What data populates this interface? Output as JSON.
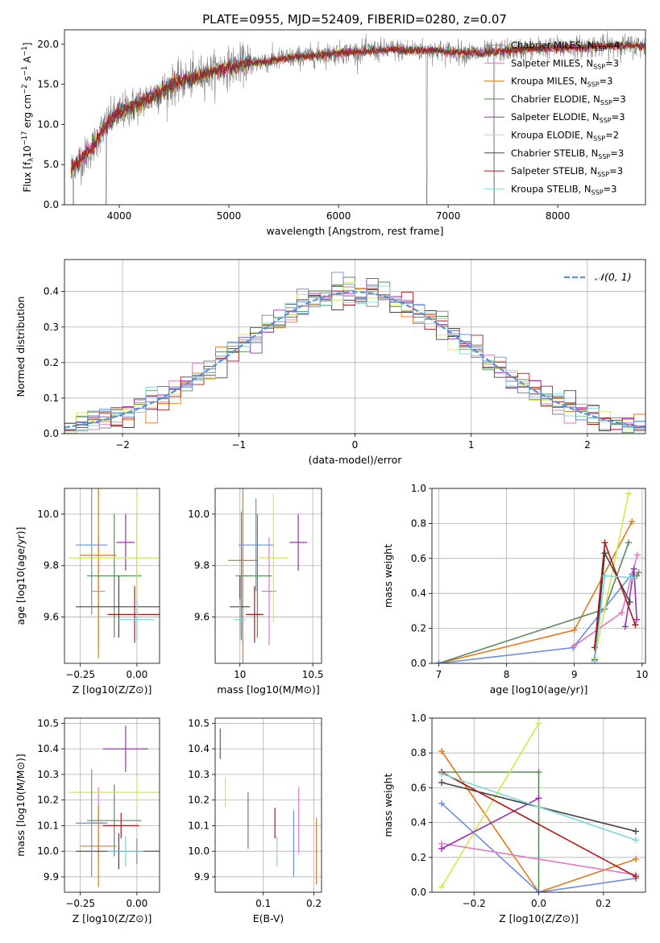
{
  "figure_title": "PLATE=0955, MJD=52409, FIBERID=0280, z=0.07",
  "colors": {
    "chabrier_miles": "#808080",
    "salpeter_miles": "#e377c2",
    "kroupa_miles": "#e07b1a",
    "chabrier_elodie": "#5a8a5a",
    "salpeter_elodie": "#9b30b0",
    "kroupa_elodie": "#d4e84a",
    "chabrier_stelib": "#444444",
    "salpeter_stelib": "#b01818",
    "kroupa_stelib": "#7fd6dc",
    "normal": "#5b8fd6",
    "extra": "#6b8ee0"
  },
  "chart_data": [
    {
      "id": "spectrum",
      "type": "line",
      "title": "PLATE=0955, MJD=52409, FIBERID=0280, z=0.07",
      "xlabel": "wavelength [Angstrom, rest frame]",
      "ylabel_parts": [
        "Flux [f",
        "λ",
        "10",
        "−17",
        " erg cm",
        "−2",
        " s",
        "−1",
        " A",
        "−1",
        "]"
      ],
      "xlim": [
        3500,
        8800
      ],
      "ylim": [
        0,
        21.8
      ],
      "xticks": [
        4000,
        5000,
        6000,
        7000,
        8000
      ],
      "yticks": [
        0,
        5,
        10,
        15,
        20
      ],
      "grid": false,
      "legend_position": "right",
      "legend": [
        {
          "label": "Chabrier MILES, N",
          "sub": "SSP",
          "suffix": "=4",
          "color": "#808080"
        },
        {
          "label": "Salpeter MILES, N",
          "sub": "SSP",
          "suffix": "=3",
          "color": "#e377c2"
        },
        {
          "label": "Kroupa MILES, N",
          "sub": "SSP",
          "suffix": "=3",
          "color": "#e07b1a"
        },
        {
          "label": "Chabrier ELODIE, N",
          "sub": "SSP",
          "suffix": "=3",
          "color": "#5a8a5a"
        },
        {
          "label": "Salpeter ELODIE, N",
          "sub": "SSP",
          "suffix": "=3",
          "color": "#9b30b0"
        },
        {
          "label": "Kroupa ELODIE, N",
          "sub": "SSP",
          "suffix": "=2",
          "color": "#d4e84a"
        },
        {
          "label": "Chabrier STELIB, N",
          "sub": "SSP",
          "suffix": "=3",
          "color": "#444444"
        },
        {
          "label": "Salpeter STELIB, N",
          "sub": "SSP",
          "suffix": "=3",
          "color": "#b01818"
        },
        {
          "label": "Kroupa STELIB, N",
          "sub": "SSP",
          "suffix": "=3",
          "color": "#7fd6dc"
        }
      ],
      "continuum": {
        "x": [
          3560,
          3650,
          3750,
          3850,
          3950,
          4050,
          4150,
          4300,
          4500,
          4700,
          4900,
          5100,
          5300,
          5500,
          5700,
          5900,
          6100,
          6300,
          6500,
          6700,
          6900,
          7100,
          7300,
          7500,
          7700,
          7900,
          8100,
          8300,
          8500,
          8800
        ],
        "y": [
          4.5,
          5.5,
          7.0,
          9.5,
          11.0,
          11.8,
          12.5,
          13.5,
          15.0,
          16.0,
          16.8,
          17.5,
          17.8,
          18.2,
          18.5,
          18.8,
          19.0,
          19.2,
          19.3,
          19.3,
          19.2,
          19.0,
          18.9,
          19.2,
          19.4,
          19.5,
          19.6,
          19.7,
          19.8,
          19.8
        ]
      },
      "dips": [
        {
          "x": 3580,
          "y": 0
        },
        {
          "x": 3880,
          "y": 0
        },
        {
          "x": 6805,
          "y": 0
        },
        {
          "x": 7420,
          "y": 0
        }
      ]
    },
    {
      "id": "residuals",
      "type": "histogram",
      "xlabel": "(data-model)/error",
      "ylabel": "Normed distribution",
      "xlim": [
        -2.5,
        2.5
      ],
      "ylim": [
        0,
        0.49
      ],
      "xticks": [
        -2,
        -1,
        0,
        1,
        2
      ],
      "yticks": [
        0.0,
        0.1,
        0.2,
        0.3,
        0.4
      ],
      "grid": true,
      "legend_position": "top-right",
      "legend_label": "𝒩(0, 1)",
      "bin_width": 0.1,
      "bin_start": -2.5,
      "n_series": 9
    },
    {
      "id": "age_vs_Z",
      "type": "errorbar",
      "xlabel": "Z [log10(Z/Z⊙)]",
      "ylabel": "age  [log10(age/yr)]",
      "xlim": [
        -0.32,
        0.1
      ],
      "ylim": [
        9.42,
        10.1
      ],
      "xticks": [
        -0.25,
        0.0
      ],
      "xtick_labels": [
        "−0.25",
        "0.00"
      ],
      "yticks": [
        9.6,
        9.8,
        10.0
      ],
      "grid": true,
      "points": [
        {
          "color": "#808080",
          "x": 0.0,
          "xerr": 0.0,
          "y": 9.76,
          "yerr": 0.25
        },
        {
          "color": "#e377c2",
          "x": -0.17,
          "xerr": 0.03,
          "y": 9.7,
          "yerr": 0.21
        },
        {
          "color": "#e07b1a",
          "x": -0.17,
          "xerr": 0.08,
          "y": 9.84,
          "yerr": 0.4
        },
        {
          "color": "#5a8a5a",
          "x": -0.1,
          "xerr": 0.12,
          "y": 9.76,
          "yerr": 0.24
        },
        {
          "color": "#9b30b0",
          "x": -0.05,
          "xerr": 0.04,
          "y": 9.89,
          "yerr": 0.11
        },
        {
          "color": "#d4e84a",
          "x": 0.0,
          "xerr": 0.3,
          "y": 9.83,
          "yerr": 0.25
        },
        {
          "color": "#444444",
          "x": -0.08,
          "xerr": 0.19,
          "y": 9.64,
          "yerr": 0.12
        },
        {
          "color": "#b01818",
          "x": -0.01,
          "xerr": 0.12,
          "y": 9.61,
          "yerr": 0.11
        },
        {
          "color": "#7fd6dc",
          "x": 0.0,
          "xerr": 0.08,
          "y": 9.59,
          "yerr": 0.08
        },
        {
          "color": "#6b8ee0",
          "x": -0.2,
          "xerr": 0.07,
          "y": 9.88,
          "yerr": 0.27
        }
      ]
    },
    {
      "id": "age_vs_mass",
      "type": "errorbar",
      "xlabel": "mass [log10(M/M⊙)]",
      "ylabel": "",
      "xlim": [
        9.83,
        10.56
      ],
      "ylim": [
        9.42,
        10.1
      ],
      "xticks": [
        10.0,
        10.5
      ],
      "yticks": [
        9.6,
        9.8,
        10.0
      ],
      "grid": true,
      "points": [
        {
          "color": "#808080",
          "x": 10.01,
          "xerr": 0.04,
          "y": 9.76,
          "yerr": 0.25
        },
        {
          "color": "#e377c2",
          "x": 10.2,
          "xerr": 0.05,
          "y": 9.7,
          "yerr": 0.21
        },
        {
          "color": "#e07b1a",
          "x": 10.02,
          "xerr": 0.1,
          "y": 9.82,
          "yerr": 0.4
        },
        {
          "color": "#5a8a5a",
          "x": 10.12,
          "xerr": 0.1,
          "y": 9.76,
          "yerr": 0.24
        },
        {
          "color": "#9b30b0",
          "x": 10.4,
          "xerr": 0.06,
          "y": 9.89,
          "yerr": 0.11
        },
        {
          "color": "#d4e84a",
          "x": 10.23,
          "xerr": 0.1,
          "y": 9.83,
          "yerr": 0.25
        },
        {
          "color": "#444444",
          "x": 10.0,
          "xerr": 0.07,
          "y": 9.64,
          "yerr": 0.12
        },
        {
          "color": "#b01818",
          "x": 10.1,
          "xerr": 0.06,
          "y": 9.61,
          "yerr": 0.11
        },
        {
          "color": "#7fd6dc",
          "x": 10.0,
          "xerr": 0.04,
          "y": 9.59,
          "yerr": 0.08
        },
        {
          "color": "#6b8ee0",
          "x": 10.11,
          "xerr": 0.12,
          "y": 9.88,
          "yerr": 0.18
        }
      ]
    },
    {
      "id": "weight_vs_age",
      "type": "line",
      "xlabel": "age  [log10(age/yr)]",
      "ylabel": "mass weight",
      "xlim": [
        6.9,
        10.05
      ],
      "ylim": [
        0,
        1.0
      ],
      "xticks": [
        7,
        8,
        9,
        10
      ],
      "yticks": [
        0.0,
        0.2,
        0.4,
        0.6,
        0.8,
        1.0
      ],
      "grid": true,
      "series": [
        {
          "color": "#e07b1a",
          "x": [
            7.0,
            9.0,
            9.85
          ],
          "y": [
            0.0,
            0.19,
            0.81
          ]
        },
        {
          "color": "#5a8a5a",
          "x": [
            7.0,
            9.45,
            9.8
          ],
          "y": [
            0.0,
            0.31,
            0.69
          ]
        },
        {
          "color": "#6b8ee0",
          "x": [
            7.0,
            8.98,
            9.85
          ],
          "y": [
            0.0,
            0.09,
            0.51
          ]
        },
        {
          "color": "#d4e84a",
          "x": [
            9.3,
            9.8
          ],
          "y": [
            0.03,
            0.97
          ]
        },
        {
          "color": "#e377c2",
          "x": [
            9.0,
            9.7,
            9.93
          ],
          "y": [
            0.1,
            0.29,
            0.62
          ]
        },
        {
          "color": "#9b30b0",
          "x": [
            9.75,
            9.88,
            9.92
          ],
          "y": [
            0.21,
            0.54,
            0.25
          ]
        },
        {
          "color": "#444444",
          "x": [
            9.3,
            9.45,
            9.82
          ],
          "y": [
            0.02,
            0.63,
            0.35
          ]
        },
        {
          "color": "#b01818",
          "x": [
            9.3,
            9.45,
            9.9
          ],
          "y": [
            0.09,
            0.69,
            0.22
          ]
        },
        {
          "color": "#7fd6dc",
          "x": [
            9.3,
            9.45,
            9.85
          ],
          "y": [
            0.01,
            0.5,
            0.49
          ]
        },
        {
          "color": "#808080",
          "x": [
            9.92,
            9.95
          ],
          "y": [
            0.5,
            0.52
          ]
        }
      ]
    },
    {
      "id": "mass_vs_Z",
      "type": "errorbar",
      "xlabel": "Z [log10(Z/Z⊙)]",
      "ylabel": "mass [log10(M/M⊙)]",
      "xlim": [
        -0.32,
        0.1
      ],
      "ylim": [
        9.84,
        10.52
      ],
      "xticks": [
        -0.25,
        0.0
      ],
      "xtick_labels": [
        "−0.25",
        "0.00"
      ],
      "yticks": [
        9.9,
        10.0,
        10.1,
        10.2,
        10.3,
        10.4,
        10.5
      ],
      "grid": true,
      "points": [
        {
          "color": "#808080",
          "x": 0.0,
          "xerr": 0.0,
          "y": 10.0,
          "yerr": 0.05
        },
        {
          "color": "#e377c2",
          "x": -0.17,
          "xerr": 0.03,
          "y": 10.11,
          "yerr": 0.14
        },
        {
          "color": "#e07b1a",
          "x": -0.17,
          "xerr": 0.08,
          "y": 10.02,
          "yerr": 0.16
        },
        {
          "color": "#5a8a5a",
          "x": -0.1,
          "xerr": 0.12,
          "y": 10.12,
          "yerr": 0.14
        },
        {
          "color": "#9b30b0",
          "x": -0.05,
          "xerr": 0.1,
          "y": 10.4,
          "yerr": 0.09
        },
        {
          "color": "#d4e84a",
          "x": 0.0,
          "xerr": 0.3,
          "y": 10.23,
          "yerr": 0.06
        },
        {
          "color": "#444444",
          "x": -0.08,
          "xerr": 0.19,
          "y": 10.0,
          "yerr": 0.07
        },
        {
          "color": "#b01818",
          "x": -0.07,
          "xerr": 0.08,
          "y": 10.1,
          "yerr": 0.05
        },
        {
          "color": "#7fd6dc",
          "x": -0.05,
          "xerr": 0.08,
          "y": 10.0,
          "yerr": 0.06
        },
        {
          "color": "#6b8ee0",
          "x": -0.2,
          "xerr": 0.07,
          "y": 10.11,
          "yerr": 0.21
        }
      ]
    },
    {
      "id": "mass_vs_ebv",
      "type": "errorbar",
      "xlabel": "E(B-V)",
      "ylabel": "",
      "xlim": [
        0.005,
        0.215
      ],
      "ylim": [
        9.84,
        10.52
      ],
      "xticks": [
        0.1,
        0.2
      ],
      "yticks": [
        9.9,
        10.0,
        10.1,
        10.2,
        10.3,
        10.4,
        10.5
      ],
      "grid": true,
      "points": [
        {
          "color": "#9b30b0",
          "x": 0.015,
          "xerr": 0.0,
          "y": 10.42,
          "yerr": 0.06
        },
        {
          "color": "#d4e84a",
          "x": 0.025,
          "xerr": 0.0,
          "y": 10.23,
          "yerr": 0.06
        },
        {
          "color": "#5a8a5a",
          "x": 0.07,
          "xerr": 0.0,
          "y": 10.12,
          "yerr": 0.11
        },
        {
          "color": "#b01818",
          "x": 0.123,
          "xerr": 0.0,
          "y": 10.11,
          "yerr": 0.06
        },
        {
          "color": "#7fd6dc",
          "x": 0.127,
          "xerr": 0.0,
          "y": 10.0,
          "yerr": 0.06
        },
        {
          "color": "#6b8ee0",
          "x": 0.16,
          "xerr": 0.0,
          "y": 10.03,
          "yerr": 0.13
        },
        {
          "color": "#e377c2",
          "x": 0.17,
          "xerr": 0.0,
          "y": 10.12,
          "yerr": 0.13
        },
        {
          "color": "#e07b1a",
          "x": 0.205,
          "xerr": 0.0,
          "y": 10.0,
          "yerr": 0.13
        }
      ]
    },
    {
      "id": "weight_vs_Z",
      "type": "line",
      "xlabel": "Z [log10(Z/Z⊙)]",
      "ylabel": "mass weight",
      "xlim": [
        -0.33,
        0.33
      ],
      "ylim": [
        0,
        1.0
      ],
      "xticks": [
        -0.2,
        0.0,
        0.2
      ],
      "xtick_labels": [
        "−0.2",
        "0.0",
        "0.2"
      ],
      "yticks": [
        0.0,
        0.2,
        0.4,
        0.6,
        0.8,
        1.0
      ],
      "grid": true,
      "series": [
        {
          "color": "#e07b1a",
          "x": [
            -0.3,
            0.0,
            0.3
          ],
          "y": [
            0.81,
            0.0,
            0.19
          ]
        },
        {
          "color": "#5a8a5a",
          "x": [
            -0.3,
            0.0,
            0.0
          ],
          "y": [
            0.69,
            0.69,
            0.0
          ]
        },
        {
          "color": "#6b8ee0",
          "x": [
            -0.3,
            0.0,
            0.3
          ],
          "y": [
            0.51,
            0.0,
            0.08
          ]
        },
        {
          "color": "#d4e84a",
          "x": [
            -0.3,
            0.0
          ],
          "y": [
            0.03,
            0.97
          ]
        },
        {
          "color": "#e377c2",
          "x": [
            -0.3,
            0.3
          ],
          "y": [
            0.28,
            0.1
          ]
        },
        {
          "color": "#9b30b0",
          "x": [
            -0.3,
            0.0
          ],
          "y": [
            0.25,
            0.54
          ]
        },
        {
          "color": "#444444",
          "x": [
            -0.3,
            0.3
          ],
          "y": [
            0.63,
            0.35
          ]
        },
        {
          "color": "#b01818",
          "x": [
            -0.3,
            0.3
          ],
          "y": [
            0.69,
            0.09
          ]
        },
        {
          "color": "#7fd6dc",
          "x": [
            -0.3,
            0.3
          ],
          "y": [
            0.68,
            0.3
          ]
        }
      ]
    }
  ]
}
